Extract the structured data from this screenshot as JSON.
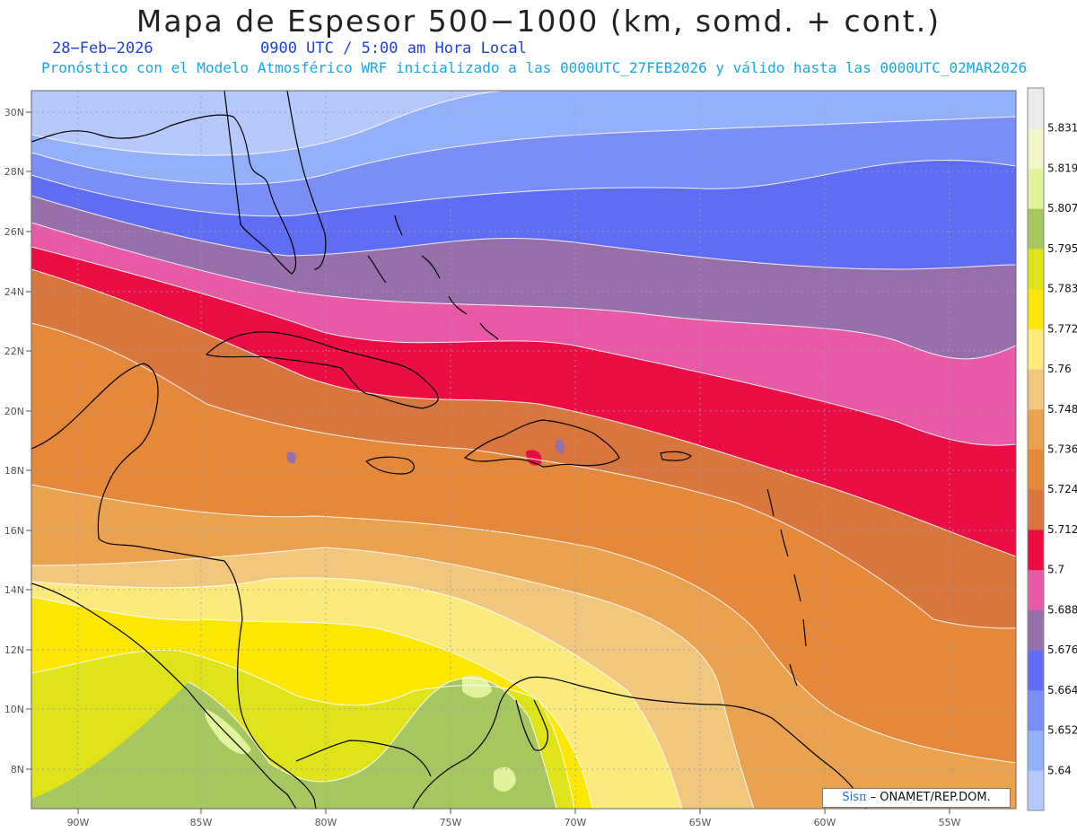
{
  "header": {
    "title": "Mapa de Espesor 500−1000 (km, somd. + cont.)",
    "date": "28−Feb−2026",
    "time": "0900 UTC / 5:00 am Hora Local",
    "subtitle": "Pronóstico con el Modelo Atmosférico WRF inicializado a las 0000UTC_27FEB2026 y válido hasta las  0000UTC_02MAR2026"
  },
  "map": {
    "lat_ticks": [
      "30N",
      "28N",
      "26N",
      "24N",
      "22N",
      "20N",
      "18N",
      "16N",
      "14N",
      "12N",
      "10N",
      "8N"
    ],
    "lon_ticks": [
      "90W",
      "85W",
      "80W",
      "75W",
      "70W",
      "65W",
      "60W",
      "55W"
    ],
    "gridlines": "dotted"
  },
  "colorbar": {
    "levels": [
      "5.64",
      "5.652",
      "5.664",
      "5.676",
      "5.688",
      "5.7",
      "5.712",
      "5.724",
      "5.736",
      "5.748",
      "5.76",
      "5.772",
      "5.783",
      "5.795",
      "5.807",
      "5.819",
      "5.831"
    ],
    "colors": [
      "#b7c8fb",
      "#93b1fb",
      "#7a8ef8",
      "#5f6cf4",
      "#9770ab",
      "#e85aa5",
      "#ea0c43",
      "#d9763d",
      "#e6883a",
      "#eba24e",
      "#f1c67d",
      "#fdea7c",
      "#fce702",
      "#dfe31a",
      "#a6c660",
      "#e1f39d",
      "#f2f6c9",
      "#ebebeb"
    ]
  },
  "credit": {
    "sis": "Sis",
    "pi": "π",
    "text": " – ONAMET/REP.DOM."
  }
}
